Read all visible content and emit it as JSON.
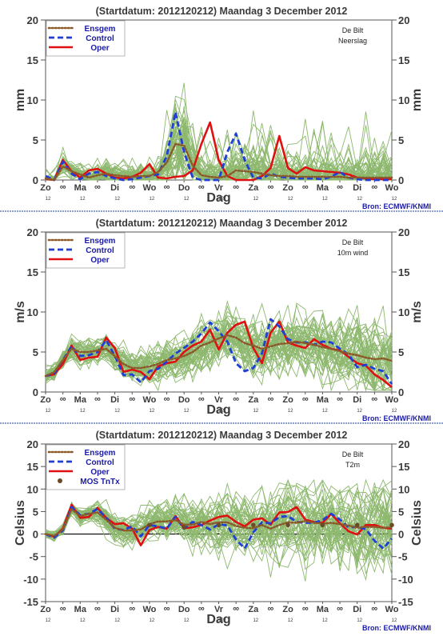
{
  "chart_data": [
    {
      "type": "line",
      "title": "(Startdatum: 2012120212)   Maandag    3 December  2012",
      "station": "De Bilt",
      "variable": "Neerslag",
      "ylabel": "mm",
      "xlabel": "Dag",
      "ylim": [
        0,
        20
      ],
      "yticks": [
        0,
        5,
        10,
        15,
        20
      ],
      "show_source": true,
      "ensemble_size": 50,
      "legend": [
        "Ensgem",
        "Control",
        "Oper"
      ],
      "series": [
        {
          "name": "Ensgem",
          "values": [
            0.2,
            0,
            1.7,
            1.1,
            0.7,
            0.3,
            0.6,
            0.8,
            0.6,
            0.5,
            0.4,
            0.5,
            0.5,
            1,
            2.2,
            4.5,
            4.3,
            1.8,
            0.6,
            0.4,
            0.3,
            0.5,
            1.2,
            1.1,
            1,
            0.8,
            0.6,
            0.5,
            0.5,
            0.4,
            0.4,
            0.4,
            0.4,
            0.4,
            0.4,
            0.3,
            0.3,
            0.3,
            0.3,
            0.3,
            0.3
          ]
        },
        {
          "name": "Control",
          "values": [
            0.5,
            0,
            2.3,
            0.8,
            0.1,
            0.8,
            1,
            0.5,
            0.2,
            0,
            0.1,
            0.3,
            0.5,
            0.7,
            3,
            8.5,
            3.5,
            0.3,
            0,
            0,
            0,
            3.5,
            5.8,
            2.5,
            0.3,
            0.2,
            0.8,
            0.4,
            0.3,
            0.2,
            0.2,
            0.2,
            0.1,
            0.4,
            1,
            0.3,
            0.1,
            0,
            0,
            0,
            0
          ]
        },
        {
          "name": "Oper",
          "values": [
            0.1,
            0,
            2.5,
            1.1,
            0.3,
            1.2,
            1.4,
            0.8,
            0.3,
            0.2,
            0.4,
            0.9,
            2,
            0.3,
            0.2,
            0.4,
            0.5,
            1.2,
            4.5,
            7.2,
            2.5,
            0.5,
            0,
            0,
            0,
            0.5,
            1.5,
            5.5,
            1.5,
            0.8,
            1.6,
            1.2,
            1.1,
            1,
            0.9,
            0.7,
            0.3,
            0.2,
            0.1,
            0.1,
            0.1
          ]
        }
      ]
    },
    {
      "type": "line",
      "title": "(Startdatum: 2012120212)   Maandag    3 December  2012",
      "station": "De Bilt",
      "variable": "10m wind",
      "ylabel": "m/s",
      "xlabel": "Dag",
      "ylim": [
        0,
        20
      ],
      "yticks": [
        0,
        5,
        10,
        15,
        20
      ],
      "show_source": true,
      "ensemble_size": 50,
      "legend": [
        "Ensgem",
        "Control",
        "Oper"
      ],
      "series": [
        {
          "name": "Ensgem",
          "values": [
            2,
            2.5,
            4,
            5.4,
            5,
            5,
            5.2,
            5.4,
            4.5,
            3.5,
            3,
            3,
            3.2,
            3.5,
            4,
            4.2,
            4.5,
            5,
            5.8,
            6.2,
            6.7,
            7.1,
            6.8,
            6.1,
            5.8,
            5.4,
            5.7,
            6,
            6.1,
            6.3,
            6.1,
            5.9,
            5.6,
            5.4,
            5.1,
            4.8,
            4.6,
            4.3,
            4.1,
            4.2,
            3.9
          ]
        },
        {
          "name": "Control",
          "values": [
            2,
            2.3,
            4,
            5.7,
            4.5,
            4.6,
            5,
            6.5,
            4.5,
            2.1,
            2.2,
            1.2,
            2.6,
            2.9,
            3.8,
            4.8,
            5.5,
            6.3,
            7.3,
            8.7,
            7.6,
            6.3,
            3.6,
            2.6,
            3,
            4.8,
            9.1,
            8.2,
            6.6,
            6.2,
            6.2,
            5.9,
            6.3,
            6.2,
            5.4,
            4.7,
            3.1,
            3.4,
            2.9,
            2.6,
            1
          ]
        },
        {
          "name": "Oper",
          "values": [
            2,
            2.2,
            3.5,
            5.8,
            4,
            4.3,
            4.4,
            6.8,
            5.5,
            2.5,
            2.8,
            2.5,
            1.6,
            3.2,
            3.6,
            3.8,
            5,
            5.8,
            6.3,
            7.8,
            5.3,
            7.4,
            8.4,
            8.8,
            5.5,
            3.6,
            7.4,
            8.8,
            6.2,
            5.8,
            5.5,
            6.6,
            5.9,
            5.4,
            5.2,
            4.4,
            3.6,
            3.3,
            2.2,
            1.5,
            0.6
          ]
        }
      ]
    },
    {
      "type": "line",
      "title": "(Startdatum: 2012120212)   Maandag    3 December  2012",
      "station": "De Bilt",
      "variable": "T2m",
      "ylabel": "Celsius",
      "xlabel": "Dag",
      "ylim": [
        -15,
        20
      ],
      "yticks": [
        -15,
        -10,
        -5,
        0,
        5,
        10,
        15,
        20
      ],
      "show_source": true,
      "ensemble_size": 50,
      "legend": [
        "Ensgem",
        "Control",
        "Oper",
        "MOS TnTx"
      ],
      "series": [
        {
          "name": "Ensgem",
          "values": [
            0,
            -0.4,
            1,
            5.5,
            4,
            4.5,
            4.8,
            3.2,
            1.4,
            0.8,
            0.8,
            1,
            2.2,
            2.8,
            2.8,
            3.1,
            2.1,
            2.1,
            2.7,
            2.2,
            2.6,
            2.6,
            1.8,
            1.4,
            1.3,
            2,
            1.2,
            2,
            2.6,
            2.5,
            2.9,
            2.5,
            2.3,
            2.5,
            2.2,
            1.9,
            1.4,
            1.6,
            1.6,
            1.4,
            1.5
          ]
        },
        {
          "name": "Control",
          "values": [
            0,
            -0.8,
            0.8,
            6,
            4.2,
            4.5,
            5.6,
            3.6,
            1.2,
            0.9,
            1.7,
            -0.5,
            2,
            1.7,
            1.2,
            3.8,
            1.2,
            2.7,
            2,
            1,
            2.2,
            1.9,
            -1.2,
            -3.2,
            0.4,
            2.6,
            2.4,
            3.8,
            4,
            2.7,
            2.5,
            2.5,
            3.1,
            4.5,
            3.2,
            1.5,
            1.6,
            1.1,
            -1.5,
            -3.2,
            -1
          ]
        },
        {
          "name": "Oper",
          "values": [
            0,
            -0.6,
            1.2,
            6.5,
            3.6,
            3.8,
            5.8,
            3.6,
            2.2,
            2.4,
            1.2,
            -2.5,
            0.9,
            1.6,
            1.2,
            4,
            1.3,
            1.5,
            2,
            3,
            3.8,
            4.1,
            2.7,
            1.7,
            3.2,
            3.5,
            2.1,
            4.8,
            4.9,
            6,
            3.2,
            2.7,
            2.5,
            4.5,
            2.4,
            0.6,
            -0.1,
            2,
            2,
            1.4,
            1.2
          ]
        }
      ],
      "mos_tntx": {
        "x": [
          12,
          16,
          20,
          24,
          28,
          32,
          36,
          40
        ],
        "values": [
          2.0,
          1.5,
          2.0,
          2.0,
          2.0,
          2.0,
          2.0,
          2.0
        ]
      }
    }
  ],
  "axis": {
    "day_labels": [
      "Zo",
      "Ma",
      "Di",
      "Wo",
      "Do",
      "Vr",
      "Za",
      "Zo",
      "Ma",
      "Di",
      "Wo"
    ],
    "hour_label": "12",
    "mid_symbol": "∞"
  },
  "source_text": "Bron: ECMWF/KNMI",
  "colors": {
    "ensemble_member": "#8db86e",
    "ensgem": "#8b5a2b",
    "control": "#1f3fd6",
    "oper": "#e01010",
    "mos": "#6b4a26",
    "frame": "#555555",
    "divider": "#1a3fa0"
  }
}
